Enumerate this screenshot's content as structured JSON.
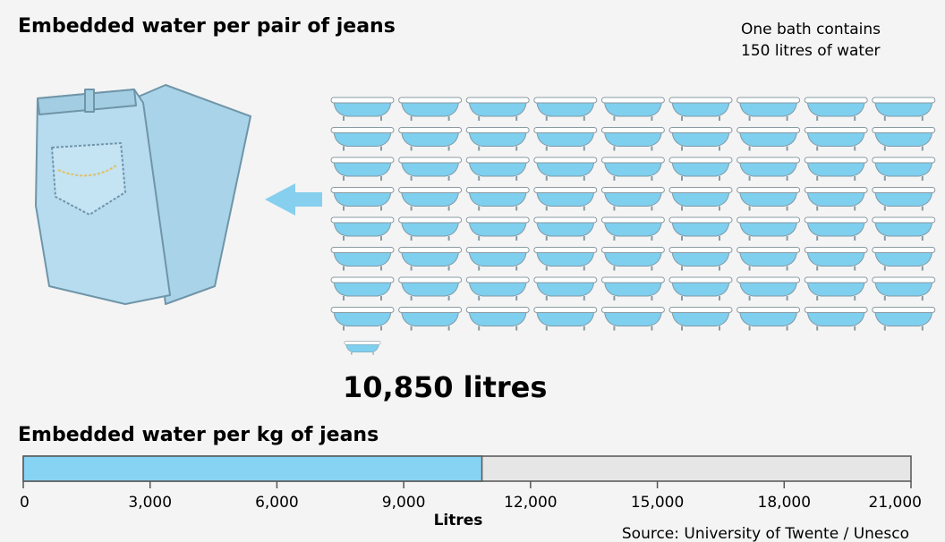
{
  "chart_data": [
    {
      "type": "pictogram",
      "title": "Embedded water per pair of jeans",
      "note": [
        "One bath contains",
        "150 litres of water"
      ],
      "unit_value": 150,
      "values": [
        10850
      ],
      "value_labels": [
        "10,850 litres"
      ],
      "color": "#7fcfef"
    },
    {
      "type": "bar",
      "title": "Embedded water per kg of jeans",
      "values": [
        10850
      ],
      "color": "#86d3f4",
      "track_color": "#e6e6e6",
      "xlim": [
        0,
        21000
      ],
      "xticks": [
        0,
        {
          "value": 3000,
          "label": "3,000"
        },
        {
          "value": 6000,
          "label": "6,000"
        },
        {
          "value": 9000,
          "label": "9,000"
        },
        {
          "value": 12000,
          "label": "12,000"
        },
        {
          "value": 15000,
          "label": "15,000"
        },
        {
          "value": 18000,
          "label": "18,000"
        },
        {
          "value": 21000,
          "label": "21,000"
        }
      ],
      "xlabel": "Litres",
      "source": "Source: University of Twente / Unesco"
    }
  ]
}
